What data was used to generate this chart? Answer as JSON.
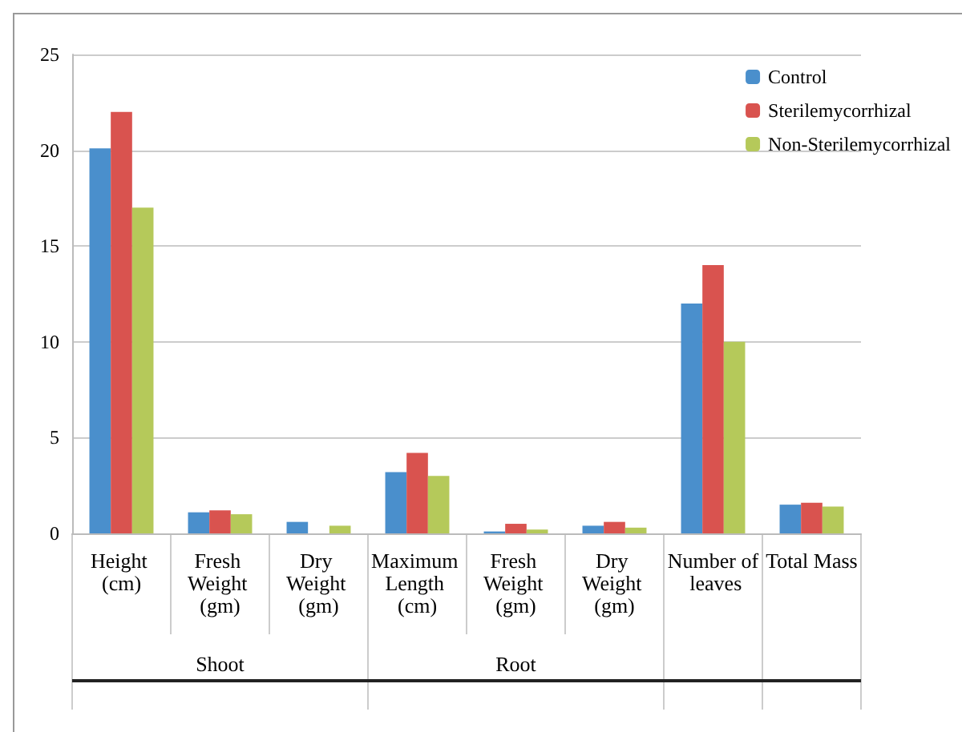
{
  "chart_data": {
    "type": "bar",
    "categories": [
      "Height (cm)",
      "Fresh Weight (gm)",
      "Dry Weight (gm)",
      "Maximum Length (cm)",
      "Fresh Weight (gm)",
      "Dry Weight (gm)",
      "Number of leaves",
      "Total Mass"
    ],
    "series": [
      {
        "name": "Control",
        "color": "#4a8fcc",
        "values": [
          20.1,
          1.1,
          0.6,
          3.2,
          0.1,
          0.4,
          12,
          1.5
        ]
      },
      {
        "name": "Sterilemycorrhizal",
        "color": "#d9534f",
        "values": [
          22,
          1.2,
          null,
          4.2,
          0.5,
          0.6,
          14,
          1.6
        ]
      },
      {
        "name": "Non-Sterilemycorrhizal",
        "color": "#b5c95a",
        "values": [
          17,
          1.0,
          0.4,
          3.0,
          0.2,
          0.3,
          10,
          1.4
        ]
      }
    ],
    "annotations": [
      "Shoot",
      "Root"
    ],
    "ylim": [
      0,
      25
    ],
    "yticks": [
      0,
      5,
      10,
      15,
      20,
      25
    ],
    "grid": "y",
    "legend": "top right"
  }
}
